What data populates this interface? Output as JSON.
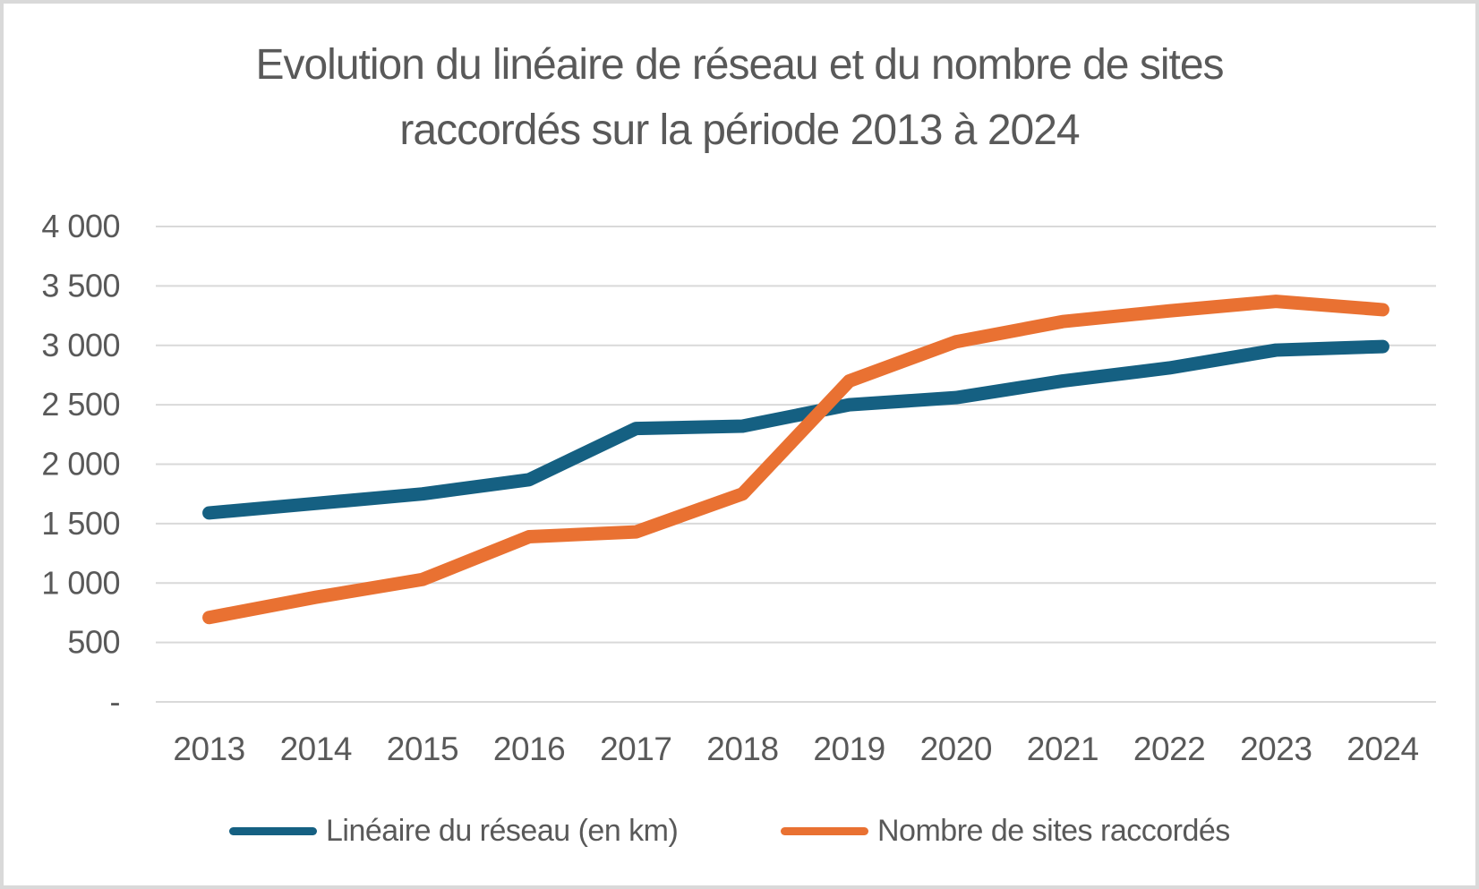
{
  "page": {
    "background_color": "#FFFFFF",
    "border_color": "#D9D9D9"
  },
  "title": {
    "text": "Evolution du linéaire de réseau et du nombre de sites raccordés sur la période 2013 à 2024",
    "color": "#595959"
  },
  "chart_data": {
    "type": "line",
    "title": "Evolution du linéaire de réseau et du nombre de sites raccordés sur la période 2013 à 2024",
    "categories": [
      2013,
      2014,
      2015,
      2016,
      2017,
      2018,
      2019,
      2020,
      2021,
      2022,
      2023,
      2024
    ],
    "series": [
      {
        "name": "Linéaire du réseau (en km)",
        "color": "#156082",
        "values": [
          1590,
          1670,
          1750,
          1870,
          2300,
          2320,
          2500,
          2560,
          2700,
          2810,
          2960,
          2990
        ]
      },
      {
        "name": "Nombre de sites raccordés",
        "color": "#E97132",
        "values": [
          710,
          880,
          1030,
          1390,
          1430,
          1750,
          2700,
          3030,
          3200,
          3290,
          3370,
          3300
        ]
      }
    ],
    "xlabel": "",
    "ylabel": "",
    "ylim": [
      0,
      4000
    ],
    "ytick_interval": 500,
    "ytick_labels_top_to_bottom": [
      "4 000",
      "3 500",
      "3 000",
      "2 500",
      "2 000",
      "1 500",
      "1 000",
      "500",
      "-"
    ],
    "grid": true,
    "gridline_color": "#D9D9D9",
    "axis_label_color": "#595959",
    "line_width": 15,
    "legend_position": "bottom"
  }
}
